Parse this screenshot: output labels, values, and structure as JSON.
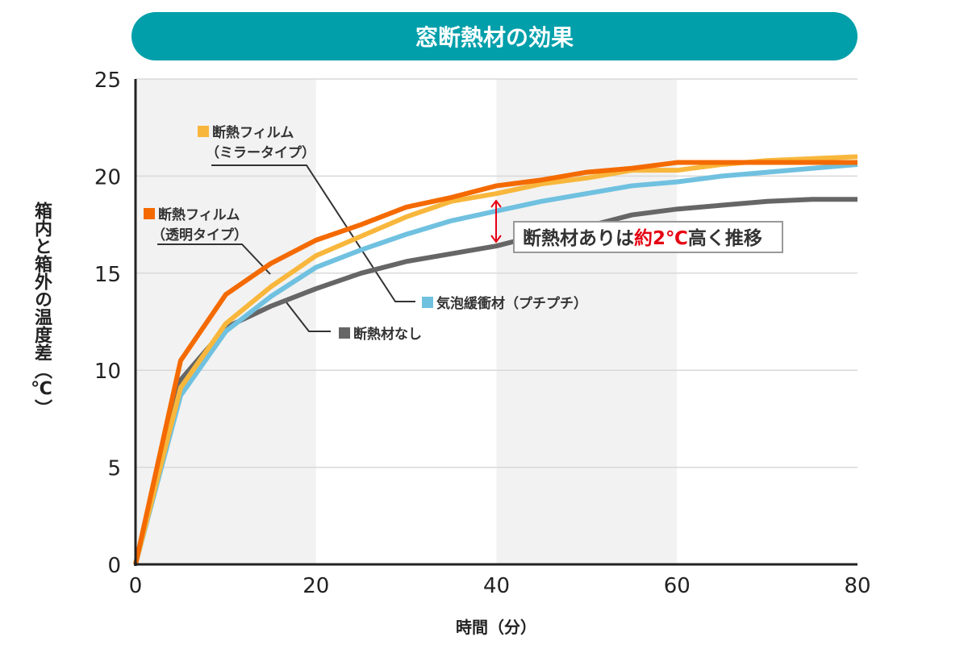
{
  "chart_data": {
    "type": "line",
    "title": "窓断熱材の効果",
    "xlabel": "時間（分）",
    "ylabel": "箱内と箱外の温度差（℃）",
    "xlim": [
      0,
      80
    ],
    "ylim": [
      0,
      25
    ],
    "xticks": [
      0,
      20,
      40,
      60,
      80
    ],
    "yticks": [
      0,
      5,
      10,
      15,
      20,
      25
    ],
    "grid": true,
    "x": [
      0,
      5,
      10,
      15,
      20,
      25,
      30,
      35,
      40,
      45,
      50,
      55,
      60,
      65,
      70,
      75,
      80
    ],
    "series": [
      {
        "name": "断熱フィルム（透明タイプ）",
        "label_lines": [
          "断熱フィルム",
          "（透明タイプ）"
        ],
        "color": "#f46a00",
        "values": [
          0,
          10.5,
          13.9,
          15.5,
          16.7,
          17.5,
          18.4,
          18.9,
          19.5,
          19.8,
          20.2,
          20.4,
          20.7,
          20.7,
          20.7,
          20.7,
          20.7
        ]
      },
      {
        "name": "断熱フィルム（ミラータイプ）",
        "label_lines": [
          "断熱フィルム",
          "（ミラータイプ）"
        ],
        "color": "#f8b73c",
        "values": [
          0,
          9.1,
          12.4,
          14.3,
          15.9,
          16.9,
          17.9,
          18.7,
          19.1,
          19.6,
          19.9,
          20.3,
          20.3,
          20.6,
          20.8,
          20.9,
          21.0
        ]
      },
      {
        "name": "気泡緩衝材（プチプチ）",
        "label_lines": [
          "気泡緩衝材（プチプチ）"
        ],
        "color": "#70c1e0",
        "values": [
          0,
          8.7,
          12.0,
          13.8,
          15.3,
          16.2,
          17.0,
          17.7,
          18.2,
          18.7,
          19.1,
          19.5,
          19.7,
          20.0,
          20.2,
          20.4,
          20.6
        ]
      },
      {
        "name": "断熱材なし",
        "label_lines": [
          "断熱材なし"
        ],
        "color": "#666666",
        "values": [
          0,
          9.5,
          12.2,
          13.3,
          14.2,
          15.0,
          15.6,
          16.0,
          16.4,
          17.0,
          17.4,
          18.0,
          18.3,
          18.5,
          18.7,
          18.8,
          18.8
        ]
      }
    ],
    "shaded_x_ranges": [
      [
        0,
        20
      ],
      [
        40,
        60
      ]
    ],
    "annotation": {
      "text_before": "断熱材ありは",
      "text_highlight": "約2℃",
      "text_after": "高く推移",
      "highlight_color": "#e60012"
    }
  }
}
